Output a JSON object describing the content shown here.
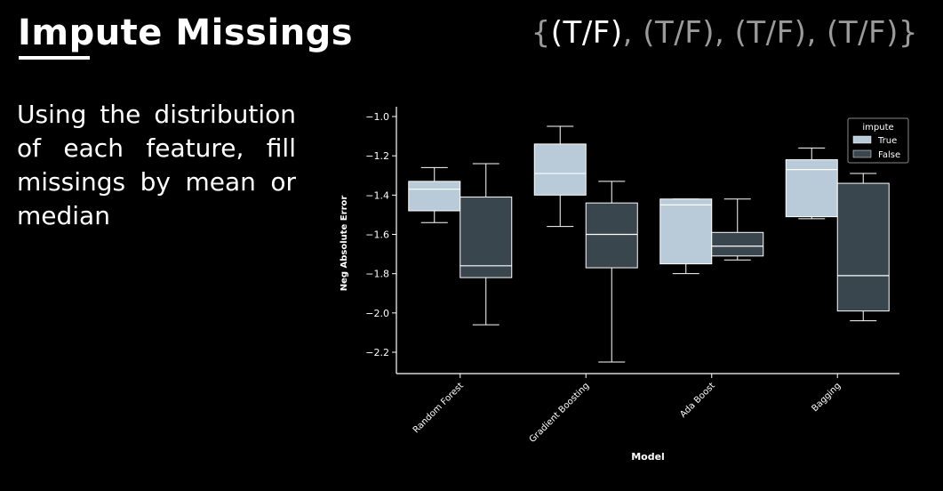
{
  "slide": {
    "title": "Impute Missings",
    "tag_parts": [
      "{",
      "(T/F)",
      ", (T/F), (T/F), (T/F)}"
    ],
    "body": "Using the distribution of each feature, fill missings by mean or median"
  },
  "colors": {
    "background": "#000000",
    "true_box": "#b9cad8",
    "false_box": "#3a464e",
    "tag_dim": "#9a9a9a"
  },
  "chart_data": {
    "type": "box",
    "xlabel": "Model",
    "ylabel": "Neg Absolute Error",
    "ylim": [
      -2.3,
      -1.0
    ],
    "yticks": [
      -1.0,
      -1.2,
      -1.4,
      -1.6,
      -1.8,
      -2.0,
      -2.2
    ],
    "yticklabels": [
      "−1.0",
      "−1.2",
      "−1.4",
      "−1.6",
      "−1.8",
      "−2.0",
      "−2.2"
    ],
    "categories": [
      "Random Forest",
      "Gradient Boosting",
      "Ada Boost",
      "Bagging"
    ],
    "legend": {
      "title": "impute",
      "position": "top-right"
    },
    "series": [
      {
        "name": "True",
        "color": "#b9cad8",
        "boxes": [
          {
            "whislo": -1.54,
            "q1": -1.48,
            "med": -1.37,
            "q3": -1.33,
            "whishi": -1.26
          },
          {
            "whislo": -1.56,
            "q1": -1.4,
            "med": -1.29,
            "q3": -1.14,
            "whishi": -1.05
          },
          {
            "whislo": -1.8,
            "q1": -1.75,
            "med": -1.45,
            "q3": -1.42,
            "whishi": -1.42
          },
          {
            "whislo": -1.52,
            "q1": -1.51,
            "med": -1.27,
            "q3": -1.22,
            "whishi": -1.16
          }
        ]
      },
      {
        "name": "False",
        "color": "#3a464e",
        "boxes": [
          {
            "whislo": -2.06,
            "q1": -1.82,
            "med": -1.76,
            "q3": -1.41,
            "whishi": -1.24
          },
          {
            "whislo": -2.25,
            "q1": -1.77,
            "med": -1.6,
            "q3": -1.44,
            "whishi": -1.33
          },
          {
            "whislo": -1.73,
            "q1": -1.71,
            "med": -1.66,
            "q3": -1.59,
            "whishi": -1.42
          },
          {
            "whislo": -2.04,
            "q1": -1.99,
            "med": -1.81,
            "q3": -1.34,
            "whishi": -1.29
          }
        ]
      }
    ]
  }
}
